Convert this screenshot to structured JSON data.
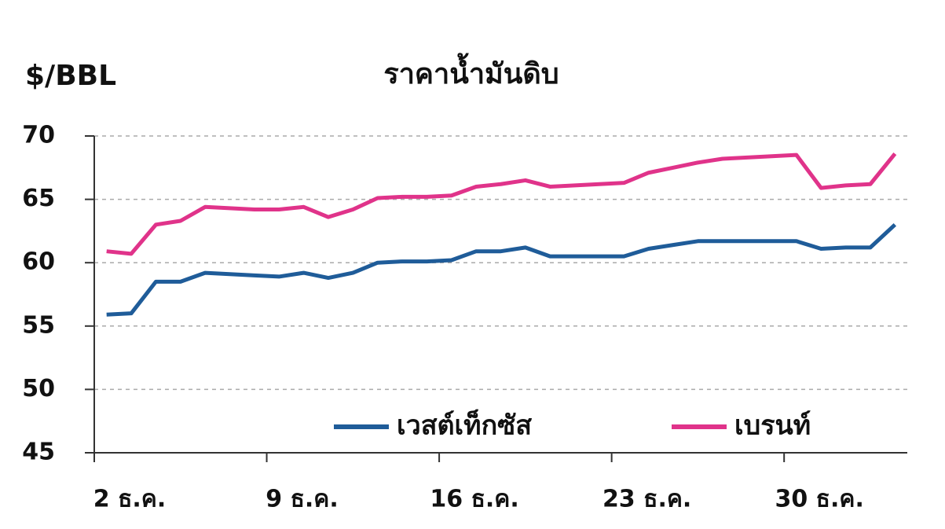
{
  "chart_data": {
    "type": "line",
    "title": "ราคาน้ำมันดิบ",
    "y_label": "$/BBL",
    "x": [
      2.5,
      3.5,
      4.5,
      5.5,
      6.5,
      7.5,
      8.5,
      9.5,
      10.5,
      11.5,
      12.5,
      13.5,
      14.5,
      15.5,
      16.5,
      17.5,
      18.5,
      19.5,
      20.5,
      21.5,
      22.5,
      23.5,
      24.5,
      25.5,
      26.5,
      27.5,
      28.5,
      29.5,
      30.5,
      31.5,
      32.5,
      33.5,
      34.5
    ],
    "series": [
      {
        "name": "เวสต์เท็กซัส",
        "color": "#1f5c99",
        "values": [
          55.9,
          56.0,
          58.5,
          58.5,
          59.2,
          59.1,
          59.0,
          58.9,
          59.2,
          58.8,
          59.2,
          60.0,
          60.1,
          60.1,
          60.2,
          60.9,
          60.9,
          61.2,
          60.5,
          60.5,
          60.5,
          60.5,
          61.1,
          61.4,
          61.7,
          61.7,
          61.7,
          61.7,
          61.7,
          61.1,
          61.2,
          61.2,
          63.0
        ]
      },
      {
        "name": "เบรนท์",
        "color": "#e0338a",
        "values": [
          60.9,
          60.7,
          63.0,
          63.3,
          64.4,
          64.3,
          64.2,
          64.2,
          64.4,
          63.6,
          64.2,
          65.1,
          65.2,
          65.2,
          65.3,
          66.0,
          66.2,
          66.5,
          66.0,
          66.1,
          66.2,
          66.3,
          67.1,
          67.5,
          67.9,
          68.2,
          68.3,
          68.4,
          68.5,
          65.9,
          66.1,
          66.2,
          68.6
        ]
      }
    ],
    "xlim": [
      2,
      35
    ],
    "xticks": [
      {
        "value": 2,
        "label": "2 ธ.ค."
      },
      {
        "value": 9,
        "label": "9 ธ.ค."
      },
      {
        "value": 16,
        "label": "16 ธ.ค."
      },
      {
        "value": 23,
        "label": "23 ธ.ค."
      },
      {
        "value": 30,
        "label": "30 ธ.ค."
      }
    ],
    "ylim": [
      45,
      70
    ],
    "yticks": [
      45,
      50,
      55,
      60,
      65,
      70
    ],
    "grid": true
  }
}
